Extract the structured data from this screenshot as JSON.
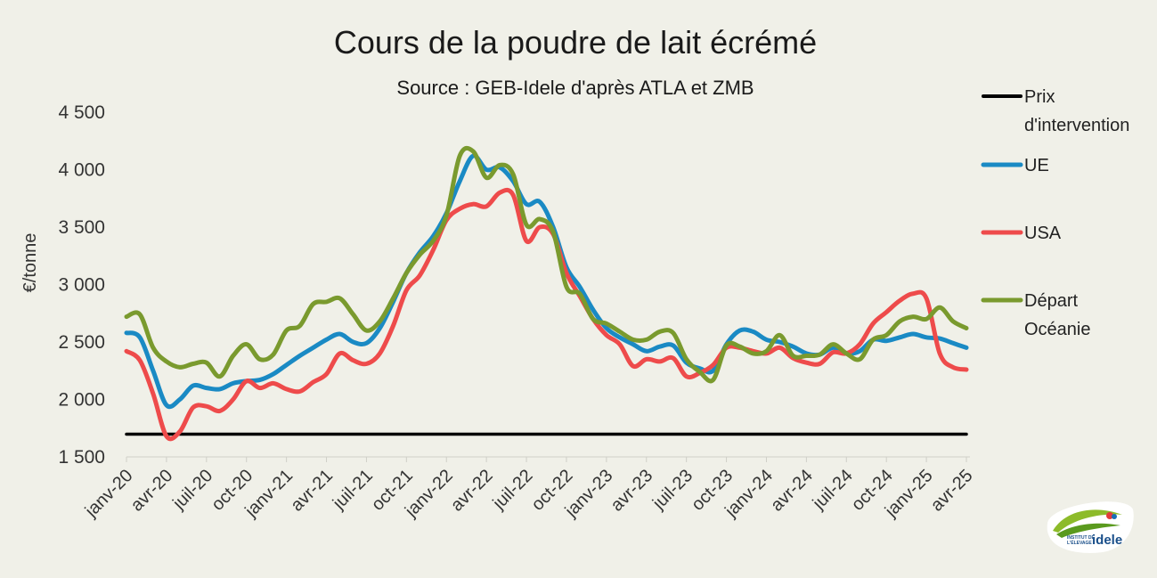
{
  "chart_data": {
    "type": "line",
    "title": "Cours de la poudre de lait écrémé",
    "subtitle": "Source : GEB-Idele d'après ATLA et ZMB",
    "ylabel": "€/tonne",
    "xlabel": "",
    "ylim": [
      1500,
      4500
    ],
    "yticks": [
      1500,
      2000,
      2500,
      3000,
      3500,
      4000,
      4500
    ],
    "ytick_labels": [
      "1 500",
      "2 000",
      "2 500",
      "3 000",
      "3 500",
      "4 000",
      "4 500"
    ],
    "xtick_labels": [
      "janv-20",
      "avr-20",
      "juil-20",
      "oct-20",
      "janv-21",
      "avr-21",
      "juil-21",
      "oct-21",
      "janv-22",
      "avr-22",
      "juil-22",
      "oct-22",
      "janv-23",
      "avr-23",
      "juil-23",
      "oct-23",
      "janv-24",
      "avr-24",
      "juil-24",
      "oct-24",
      "janv-25",
      "avr-25"
    ],
    "x_months": 64,
    "grid": false,
    "legend_position": "right",
    "series": [
      {
        "name": "Prix d'intervention",
        "legend_lines": [
          "Prix",
          "d'intervention"
        ],
        "color": "#000000",
        "values": [
          1698,
          1698,
          1698,
          1698,
          1698,
          1698,
          1698,
          1698,
          1698,
          1698,
          1698,
          1698,
          1698,
          1698,
          1698,
          1698,
          1698,
          1698,
          1698,
          1698,
          1698,
          1698,
          1698,
          1698,
          1698,
          1698,
          1698,
          1698,
          1698,
          1698,
          1698,
          1698,
          1698,
          1698,
          1698,
          1698,
          1698,
          1698,
          1698,
          1698,
          1698,
          1698,
          1698,
          1698,
          1698,
          1698,
          1698,
          1698,
          1698,
          1698,
          1698,
          1698,
          1698,
          1698,
          1698,
          1698,
          1698,
          1698,
          1698,
          1698,
          1698,
          1698,
          1698,
          1698
        ]
      },
      {
        "name": "UE",
        "legend_lines": [
          "UE"
        ],
        "color": "#1a8ac4",
        "values": [
          2580,
          2540,
          2250,
          1950,
          2000,
          2120,
          2100,
          2090,
          2140,
          2160,
          2170,
          2220,
          2300,
          2380,
          2450,
          2520,
          2570,
          2500,
          2490,
          2620,
          2850,
          3100,
          3280,
          3420,
          3620,
          3900,
          4120,
          4000,
          4020,
          3900,
          3700,
          3720,
          3500,
          3150,
          2980,
          2780,
          2620,
          2540,
          2480,
          2420,
          2460,
          2470,
          2320,
          2270,
          2250,
          2480,
          2600,
          2590,
          2520,
          2500,
          2460,
          2400,
          2390,
          2450,
          2400,
          2420,
          2520,
          2510,
          2540,
          2570,
          2540,
          2530,
          2490,
          2450
        ]
      },
      {
        "name": "USA",
        "legend_lines": [
          "USA"
        ],
        "color": "#ee4b4b",
        "values": [
          2420,
          2340,
          2050,
          1680,
          1720,
          1930,
          1940,
          1900,
          2000,
          2160,
          2100,
          2140,
          2090,
          2070,
          2150,
          2220,
          2400,
          2340,
          2310,
          2400,
          2640,
          2950,
          3080,
          3300,
          3560,
          3660,
          3700,
          3680,
          3800,
          3780,
          3380,
          3500,
          3440,
          3100,
          2900,
          2700,
          2560,
          2480,
          2290,
          2350,
          2330,
          2360,
          2200,
          2230,
          2300,
          2450,
          2450,
          2420,
          2400,
          2450,
          2360,
          2320,
          2310,
          2410,
          2400,
          2480,
          2660,
          2760,
          2860,
          2920,
          2880,
          2400,
          2280,
          2260
        ]
      },
      {
        "name": "Départ Océanie",
        "legend_lines": [
          "Départ",
          "Océanie"
        ],
        "color": "#7a9a2e",
        "values": [
          2720,
          2740,
          2450,
          2330,
          2280,
          2310,
          2320,
          2200,
          2380,
          2480,
          2350,
          2390,
          2600,
          2640,
          2830,
          2850,
          2880,
          2740,
          2600,
          2680,
          2880,
          3100,
          3260,
          3380,
          3600,
          4120,
          4160,
          3930,
          4040,
          3960,
          3520,
          3570,
          3460,
          2980,
          2920,
          2700,
          2660,
          2590,
          2520,
          2520,
          2590,
          2580,
          2350,
          2240,
          2170,
          2470,
          2460,
          2400,
          2420,
          2560,
          2380,
          2380,
          2390,
          2480,
          2400,
          2350,
          2520,
          2560,
          2680,
          2720,
          2700,
          2800,
          2680,
          2620
        ]
      }
    ]
  },
  "logo": {
    "line1": "INSTITUT DE",
    "line2": "L'ÉLEVAGE",
    "brand": "idele"
  }
}
